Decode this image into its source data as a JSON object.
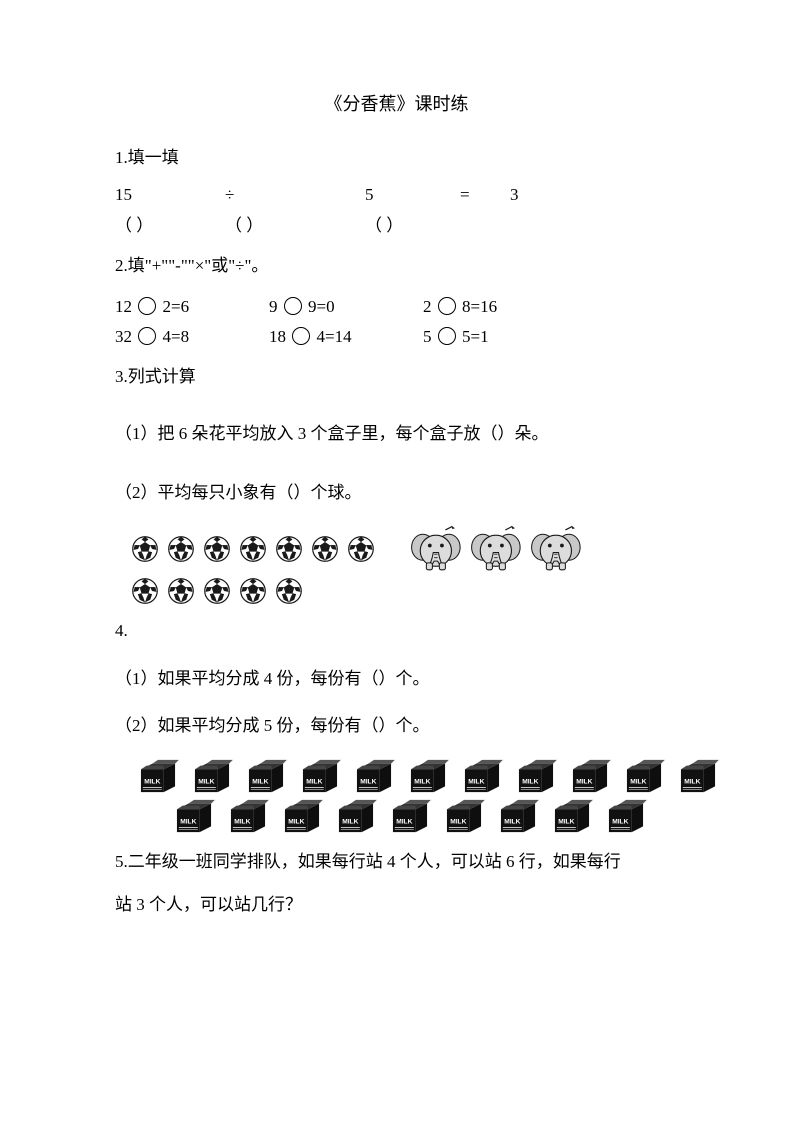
{
  "title": "《分香蕉》课时练",
  "q1": {
    "label": "1.填一填",
    "num1": "15",
    "op": "÷",
    "num2": "5",
    "eq": "=",
    "num3": "3",
    "blank": "（      ）"
  },
  "q2": {
    "label": "2.填\"+\"\"-\"\"×\"或\"÷\"。",
    "row1": {
      "a1": "12",
      "a2": "2=6",
      "b1": "9",
      "b2": "9=0",
      "c1": "2",
      "c2": "8=16"
    },
    "row2": {
      "a1": "32",
      "a2": "4=8",
      "b1": "18",
      "b2": "4=14",
      "c1": "5",
      "c2": "5=1"
    }
  },
  "q3": {
    "label": "3.列式计算",
    "p1": "（1）把 6 朵花平均放入 3 个盒子里，每个盒子放（）朵。",
    "p2": "（2）平均每只小象有（）个球。",
    "balls_row1": 7,
    "balls_row2": 5,
    "elephants": 3
  },
  "q4": {
    "label": "4.",
    "p1": "（1）如果平均分成 4 份，每份有（）个。",
    "p2": "（2）如果平均分成 5 份，每份有（）个。",
    "milk_row1": 11,
    "milk_row2": 9,
    "milk_label": "MILK"
  },
  "q5": {
    "line1": "5.二年级一班同学排队，如果每行站 4 个人，可以站 6 行，如果每行",
    "line2": "站 3 个人，可以站几行？"
  },
  "colors": {
    "text": "#000000",
    "bg": "#ffffff",
    "icon_dark": "#1a1a1a",
    "icon_mid": "#666666",
    "icon_light": "#d0d0d0"
  }
}
